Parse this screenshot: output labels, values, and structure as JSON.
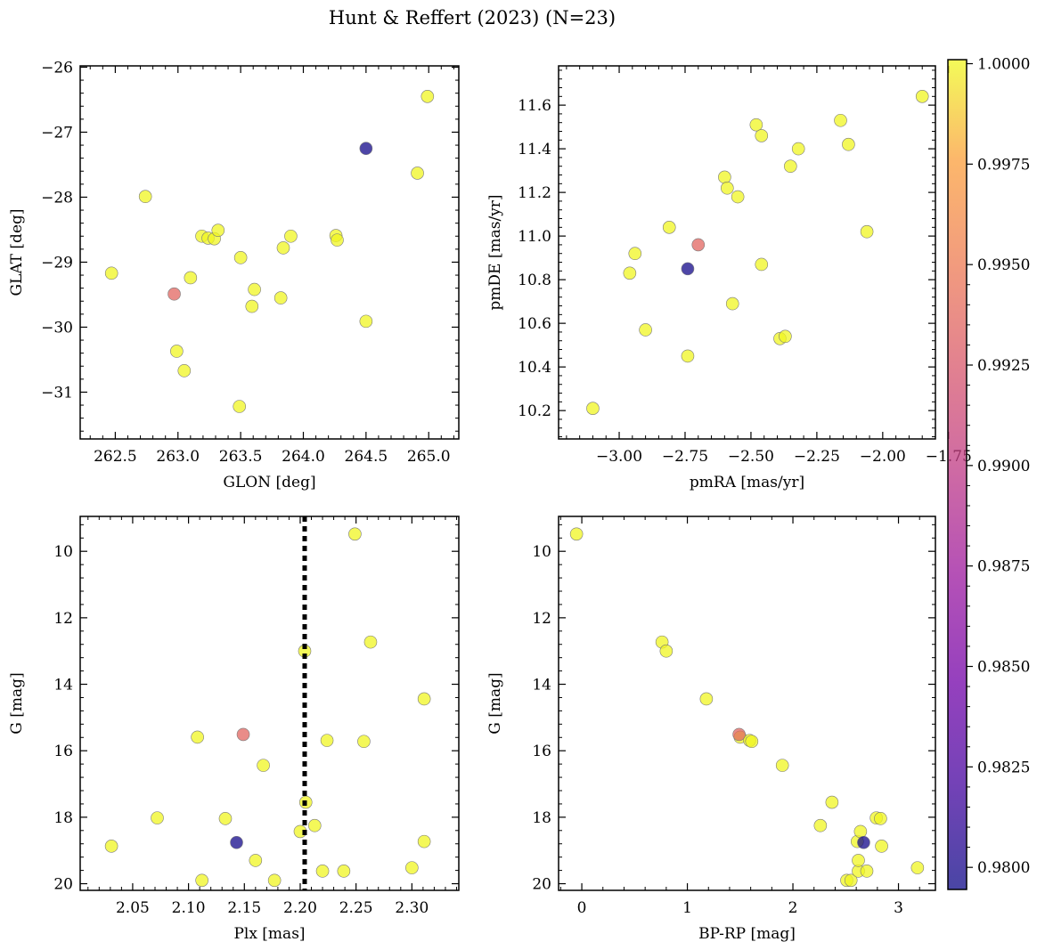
{
  "title": "Hunt & Reffert (2023) (N=23)",
  "colorbar": {
    "min": 0.97945,
    "max": 1.0001,
    "ticks": [
      "1.0000",
      "0.9975",
      "0.9950",
      "0.9925",
      "0.9900",
      "0.9875",
      "0.9850",
      "0.9825",
      "0.9800"
    ]
  },
  "chart_data": [
    {
      "type": "scatter",
      "panel": "top-left",
      "xlabel": "GLON [deg]",
      "ylabel": "GLAT [deg]",
      "xlim": [
        262.22,
        265.24
      ],
      "ylim": [
        -31.72,
        -25.98
      ],
      "xticks": [
        "262.5",
        "263.0",
        "263.5",
        "264.0",
        "264.5",
        "265.0"
      ],
      "yticks": [
        "−26",
        "−27",
        "−28",
        "−29",
        "−30",
        "−31"
      ],
      "points": [
        {
          "x": 262.47,
          "y": -29.17,
          "c": 1.0
        },
        {
          "x": 262.74,
          "y": -27.99,
          "c": 1.0
        },
        {
          "x": 262.97,
          "y": -29.49,
          "c": 0.9935
        },
        {
          "x": 262.99,
          "y": -30.37,
          "c": 1.0
        },
        {
          "x": 263.05,
          "y": -30.67,
          "c": 1.0
        },
        {
          "x": 263.1,
          "y": -29.24,
          "c": 1.0
        },
        {
          "x": 263.19,
          "y": -28.6,
          "c": 1.0
        },
        {
          "x": 263.24,
          "y": -28.63,
          "c": 1.0
        },
        {
          "x": 263.29,
          "y": -28.64,
          "c": 1.0
        },
        {
          "x": 263.32,
          "y": -28.51,
          "c": 1.0
        },
        {
          "x": 263.5,
          "y": -28.93,
          "c": 1.0
        },
        {
          "x": 263.49,
          "y": -31.22,
          "c": 1.0
        },
        {
          "x": 263.59,
          "y": -29.68,
          "c": 1.0
        },
        {
          "x": 263.61,
          "y": -29.42,
          "c": 1.0
        },
        {
          "x": 263.82,
          "y": -29.55,
          "c": 1.0
        },
        {
          "x": 263.84,
          "y": -28.78,
          "c": 1.0
        },
        {
          "x": 263.9,
          "y": -28.6,
          "c": 1.0
        },
        {
          "x": 264.26,
          "y": -28.59,
          "c": 1.0
        },
        {
          "x": 264.27,
          "y": -28.66,
          "c": 1.0
        },
        {
          "x": 264.5,
          "y": -27.25,
          "c": 0.9797
        },
        {
          "x": 264.5,
          "y": -29.91,
          "c": 1.0
        },
        {
          "x": 264.91,
          "y": -27.63,
          "c": 1.0
        },
        {
          "x": 264.99,
          "y": -26.45,
          "c": 1.0
        }
      ]
    },
    {
      "type": "scatter",
      "panel": "top-right",
      "xlabel": "pmRA [mas/yr]",
      "ylabel": "pmDE [mas/yr]",
      "xlim": [
        -3.23,
        -1.8
      ],
      "ylim": [
        10.07,
        11.78
      ],
      "xticks": [
        "−3.00",
        "−2.75",
        "−2.50",
        "−2.25",
        "−2.00",
        "−1.75"
      ],
      "yticks": [
        "10.2",
        "10.4",
        "10.6",
        "10.8",
        "11.0",
        "11.2",
        "11.4",
        "11.6"
      ],
      "points": [
        {
          "x": -3.1,
          "y": 10.21,
          "c": 1.0
        },
        {
          "x": -2.96,
          "y": 10.83,
          "c": 1.0
        },
        {
          "x": -2.94,
          "y": 10.92,
          "c": 1.0
        },
        {
          "x": -2.9,
          "y": 10.57,
          "c": 1.0
        },
        {
          "x": -2.81,
          "y": 11.04,
          "c": 1.0
        },
        {
          "x": -2.74,
          "y": 10.45,
          "c": 1.0
        },
        {
          "x": -2.74,
          "y": 10.85,
          "c": 0.9797
        },
        {
          "x": -2.7,
          "y": 10.96,
          "c": 0.9935
        },
        {
          "x": -2.6,
          "y": 11.27,
          "c": 1.0
        },
        {
          "x": -2.59,
          "y": 11.22,
          "c": 1.0
        },
        {
          "x": -2.57,
          "y": 10.69,
          "c": 1.0
        },
        {
          "x": -2.55,
          "y": 11.18,
          "c": 1.0
        },
        {
          "x": -2.48,
          "y": 11.51,
          "c": 1.0
        },
        {
          "x": -2.46,
          "y": 11.46,
          "c": 1.0
        },
        {
          "x": -2.46,
          "y": 10.87,
          "c": 1.0
        },
        {
          "x": -2.39,
          "y": 10.53,
          "c": 1.0
        },
        {
          "x": -2.37,
          "y": 10.54,
          "c": 1.0
        },
        {
          "x": -2.35,
          "y": 11.32,
          "c": 1.0
        },
        {
          "x": -2.32,
          "y": 11.4,
          "c": 1.0
        },
        {
          "x": -2.16,
          "y": 11.53,
          "c": 1.0
        },
        {
          "x": -2.13,
          "y": 11.42,
          "c": 1.0
        },
        {
          "x": -2.06,
          "y": 11.02,
          "c": 1.0
        },
        {
          "x": -1.85,
          "y": 11.64,
          "c": 1.0
        }
      ]
    },
    {
      "type": "scatter",
      "panel": "bottom-left",
      "xlabel": "Plx [mas]",
      "ylabel": "G [mag]",
      "xlim": [
        2.003,
        2.342
      ],
      "ylim": [
        20.2,
        8.95
      ],
      "y_inverted": true,
      "xticks": [
        "2.05",
        "2.10",
        "2.15",
        "2.20",
        "2.25",
        "2.30"
      ],
      "yticks": [
        "10",
        "12",
        "14",
        "16",
        "18",
        "20"
      ],
      "vline": 2.204,
      "points": [
        {
          "x": 2.031,
          "y": 18.87,
          "c": 1.0
        },
        {
          "x": 2.072,
          "y": 18.02,
          "c": 1.0
        },
        {
          "x": 2.108,
          "y": 15.59,
          "c": 1.0
        },
        {
          "x": 2.112,
          "y": 19.9,
          "c": 1.0
        },
        {
          "x": 2.133,
          "y": 18.04,
          "c": 1.0
        },
        {
          "x": 2.143,
          "y": 18.76,
          "c": 0.9797
        },
        {
          "x": 2.149,
          "y": 15.51,
          "c": 0.9935
        },
        {
          "x": 2.16,
          "y": 19.3,
          "c": 1.0
        },
        {
          "x": 2.167,
          "y": 16.44,
          "c": 1.0
        },
        {
          "x": 2.177,
          "y": 19.9,
          "c": 1.0
        },
        {
          "x": 2.2,
          "y": 18.43,
          "c": 1.0
        },
        {
          "x": 2.204,
          "y": 13.0,
          "c": 1.0
        },
        {
          "x": 2.205,
          "y": 17.55,
          "c": 1.0
        },
        {
          "x": 2.213,
          "y": 18.25,
          "c": 1.0
        },
        {
          "x": 2.22,
          "y": 19.62,
          "c": 1.0
        },
        {
          "x": 2.224,
          "y": 15.69,
          "c": 1.0
        },
        {
          "x": 2.239,
          "y": 19.62,
          "c": 1.0
        },
        {
          "x": 2.249,
          "y": 9.48,
          "c": 1.0
        },
        {
          "x": 2.257,
          "y": 15.72,
          "c": 1.0
        },
        {
          "x": 2.263,
          "y": 12.73,
          "c": 1.0
        },
        {
          "x": 2.3,
          "y": 19.52,
          "c": 1.0
        },
        {
          "x": 2.311,
          "y": 14.44,
          "c": 1.0
        },
        {
          "x": 2.311,
          "y": 18.73,
          "c": 1.0
        }
      ]
    },
    {
      "type": "scatter",
      "panel": "bottom-right",
      "xlabel": "BP-RP [mag]",
      "ylabel": "G [mag]",
      "xlim": [
        -0.22,
        3.35
      ],
      "ylim": [
        20.2,
        8.95
      ],
      "y_inverted": true,
      "xticks": [
        "0",
        "1",
        "2",
        "3"
      ],
      "yticks": [
        "10",
        "12",
        "14",
        "16",
        "18",
        "20"
      ],
      "points": [
        {
          "x": -0.05,
          "y": 9.48,
          "c": 1.0
        },
        {
          "x": 0.76,
          "y": 12.73,
          "c": 1.0
        },
        {
          "x": 0.8,
          "y": 13.0,
          "c": 1.0
        },
        {
          "x": 1.18,
          "y": 14.44,
          "c": 1.0
        },
        {
          "x": 1.49,
          "y": 15.51,
          "c": 0.9935
        },
        {
          "x": 1.5,
          "y": 15.59,
          "c": 1.0
        },
        {
          "x": 1.59,
          "y": 15.69,
          "c": 1.0
        },
        {
          "x": 1.61,
          "y": 15.72,
          "c": 1.0
        },
        {
          "x": 1.9,
          "y": 16.44,
          "c": 1.0
        },
        {
          "x": 2.26,
          "y": 18.25,
          "c": 1.0
        },
        {
          "x": 2.37,
          "y": 17.55,
          "c": 1.0
        },
        {
          "x": 2.51,
          "y": 19.9,
          "c": 1.0
        },
        {
          "x": 2.55,
          "y": 19.9,
          "c": 1.0
        },
        {
          "x": 2.61,
          "y": 18.73,
          "c": 1.0
        },
        {
          "x": 2.62,
          "y": 19.62,
          "c": 1.0
        },
        {
          "x": 2.62,
          "y": 19.3,
          "c": 1.0
        },
        {
          "x": 2.64,
          "y": 18.43,
          "c": 1.0
        },
        {
          "x": 2.67,
          "y": 18.76,
          "c": 0.9797
        },
        {
          "x": 2.7,
          "y": 19.62,
          "c": 1.0
        },
        {
          "x": 2.79,
          "y": 18.02,
          "c": 1.0
        },
        {
          "x": 2.83,
          "y": 18.04,
          "c": 1.0
        },
        {
          "x": 2.84,
          "y": 18.87,
          "c": 1.0
        },
        {
          "x": 3.18,
          "y": 19.52,
          "c": 1.0
        }
      ]
    }
  ]
}
